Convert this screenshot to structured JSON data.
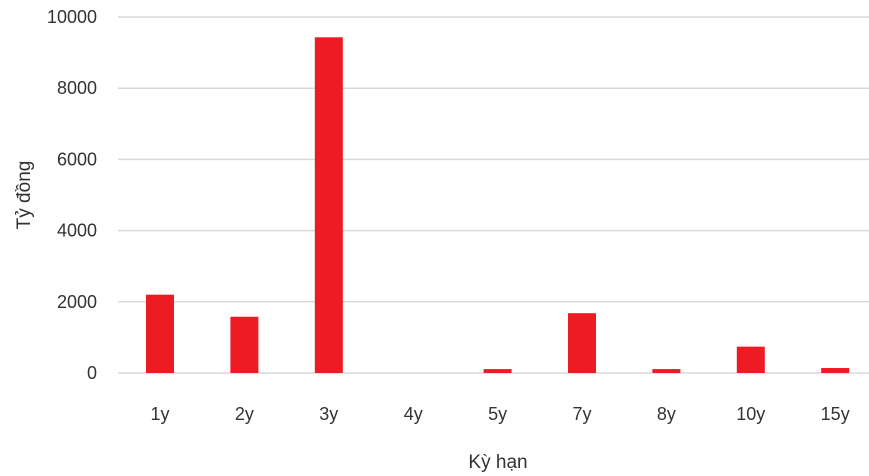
{
  "chart_data": {
    "type": "bar",
    "title": "",
    "xlabel": "Kỳ hạn",
    "ylabel": "Tỷ đồng",
    "categories": [
      "1y",
      "2y",
      "3y",
      "4y",
      "5y",
      "7y",
      "8y",
      "10y",
      "15y"
    ],
    "values": [
      2200,
      1580,
      9430,
      0,
      110,
      1680,
      110,
      740,
      140
    ],
    "ylim": [
      0,
      10000
    ],
    "yticks": [
      "0",
      "2000",
      "4000",
      "6000",
      "8000",
      "10000"
    ],
    "grid": true,
    "legend": "none",
    "bar_color": "#ed1c24",
    "grid_color": "#d9d9d9"
  }
}
